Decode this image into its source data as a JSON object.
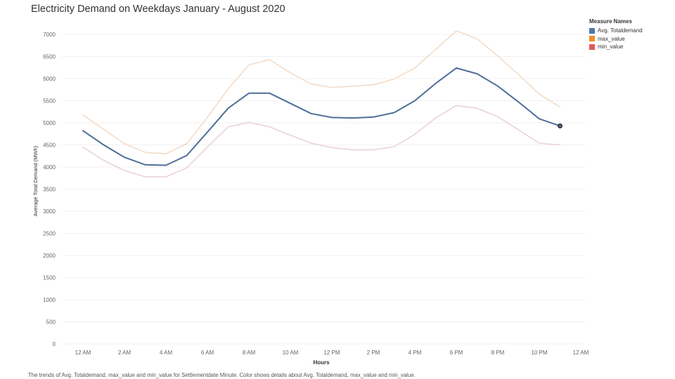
{
  "chart_data": {
    "type": "line",
    "title": "Electricity Demand on Weekdays January - August 2020",
    "xlabel": "Hours",
    "ylabel": "Average Total Demand (MWh)",
    "x_tick_labels": [
      "12 AM",
      "2 AM",
      "4 AM",
      "6 AM",
      "8 AM",
      "10 AM",
      "12 PM",
      "2 PM",
      "4 PM",
      "6 PM",
      "8 PM",
      "10 PM",
      "12 AM"
    ],
    "y_tick_labels": [
      "0",
      "500",
      "1000",
      "1500",
      "2000",
      "2500",
      "3000",
      "3500",
      "4000",
      "4500",
      "5000",
      "5500",
      "6000",
      "6500",
      "7000"
    ],
    "ylim": [
      0,
      7300
    ],
    "grid": true,
    "legend_title": "Measure Names",
    "legend_position": "top-right",
    "x": [
      0,
      1,
      2,
      3,
      4,
      5,
      6,
      7,
      8,
      9,
      10,
      11,
      12,
      13,
      14,
      15,
      16,
      17,
      18,
      19,
      20,
      21,
      22,
      23
    ],
    "series": [
      {
        "name": "max_value",
        "legend_color": "#f28e2b",
        "line_color": "#f3dcc8",
        "values": [
          5180,
          4850,
          4530,
          4330,
          4300,
          4530,
          5120,
          5770,
          6310,
          6430,
          6130,
          5880,
          5800,
          5830,
          5860,
          5990,
          6240,
          6660,
          7080,
          6900,
          6510,
          6090,
          5650,
          5360
        ]
      },
      {
        "name": "min_value",
        "legend_color": "#e15759",
        "line_color": "#ebd3d3",
        "values": [
          4450,
          4150,
          3920,
          3780,
          3780,
          3980,
          4450,
          4910,
          5010,
          4910,
          4720,
          4540,
          4440,
          4390,
          4390,
          4460,
          4740,
          5110,
          5390,
          5330,
          5140,
          4840,
          4540,
          4500
        ]
      },
      {
        "name": "Avg. Totaldemand",
        "legend_color": "#4e79a7",
        "line_color": "#4e6e99",
        "values": [
          4820,
          4500,
          4220,
          4050,
          4040,
          4260,
          4790,
          5330,
          5670,
          5670,
          5440,
          5210,
          5120,
          5110,
          5130,
          5230,
          5500,
          5890,
          6240,
          6110,
          5830,
          5470,
          5090,
          4930
        ]
      }
    ],
    "highlighted_point": {
      "series": "Avg. Totaldemand",
      "x": 23,
      "y": 4930
    }
  },
  "caption": "The trends of Avg. Totaldemand, max_value and min_value for Settlementdate Minute.  Color shows details about Avg. Totaldemand, max_value and min_value."
}
